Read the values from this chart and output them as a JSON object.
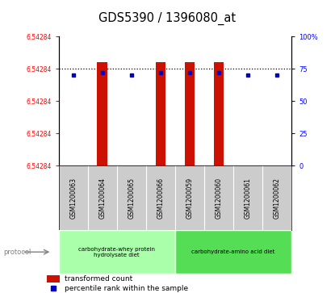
{
  "title": "GDS5390 / 1396080_at",
  "samples": [
    "GSM1200063",
    "GSM1200064",
    "GSM1200065",
    "GSM1200066",
    "GSM1200059",
    "GSM1200060",
    "GSM1200061",
    "GSM1200062"
  ],
  "ylim": [
    0,
    100
  ],
  "bar_heights": [
    0,
    80,
    0,
    80,
    80,
    80,
    0,
    0
  ],
  "bar_bottoms": [
    0,
    0,
    0,
    0,
    0,
    0,
    0,
    0
  ],
  "blue_marker_y": [
    70,
    72,
    70,
    72,
    72,
    72,
    70,
    70
  ],
  "bar_color": "#cc1100",
  "blue_color": "#0000cc",
  "dotted_line_y": 75,
  "group1_label": "carbohydrate-whey protein\nhydrolysate diet",
  "group2_label": "carbohydrate-amino acid diet",
  "group1_color": "#aaffaa",
  "group2_color": "#55dd55",
  "protocol_label": "protocol",
  "legend_bar_label": "transformed count",
  "legend_blue_label": "percentile rank within the sample",
  "bar_width": 0.35,
  "left_ytick_label": "6.54284",
  "right_ytick_labels": [
    "0",
    "25",
    "50",
    "75",
    "100%"
  ],
  "right_ytick_positions": [
    0,
    25,
    50,
    75,
    100
  ]
}
